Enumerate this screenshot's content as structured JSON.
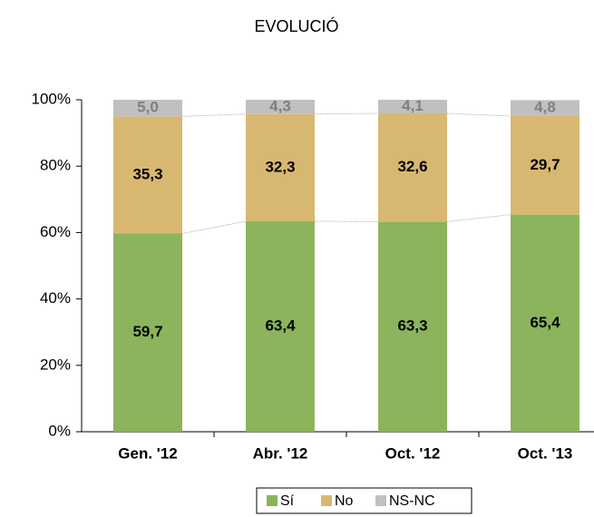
{
  "chart_data": {
    "type": "stacked_bar",
    "title": "EVOLUCIÓ",
    "categories": [
      "Gen. '12",
      "Abr. '12",
      "Oct. '12",
      "Oct. '13"
    ],
    "series": [
      {
        "name": "Sí",
        "color": "#8cb45c",
        "label_color": "#000000",
        "values": [
          59.7,
          63.4,
          63.3,
          65.4
        ],
        "value_labels": [
          "59,7",
          "63,4",
          "63,3",
          "65,4"
        ]
      },
      {
        "name": "No",
        "color": "#d8b870",
        "label_color": "#000000",
        "values": [
          35.3,
          32.3,
          32.6,
          29.7
        ],
        "value_labels": [
          "35,3",
          "32,3",
          "32,6",
          "29,7"
        ]
      },
      {
        "name": "NS-NC",
        "color": "#c0c0c0",
        "label_color": "#7f7f7f",
        "values": [
          5.0,
          4.3,
          4.1,
          4.8
        ],
        "value_labels": [
          "5,0",
          "4,3",
          "4,1",
          "4,8"
        ]
      }
    ],
    "ylim": [
      0,
      100
    ],
    "yticks": [
      {
        "value": 0,
        "label": "0%"
      },
      {
        "value": 20,
        "label": "20%"
      },
      {
        "value": 40,
        "label": "40%"
      },
      {
        "value": 60,
        "label": "60%"
      },
      {
        "value": 80,
        "label": "80%"
      },
      {
        "value": 100,
        "label": "100%"
      }
    ],
    "legend": "bottom"
  }
}
